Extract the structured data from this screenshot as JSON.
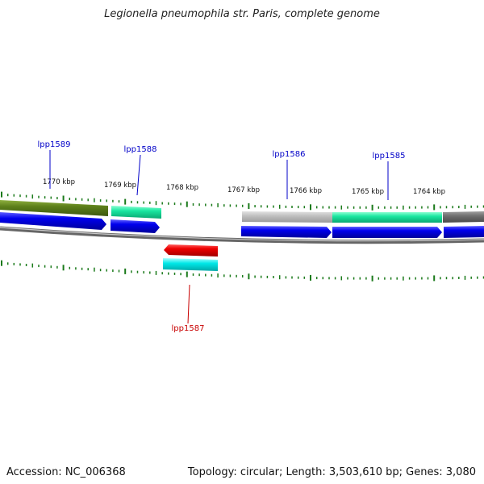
{
  "title": "Legionella pneumophila str. Paris, complete genome",
  "footer": {
    "accession": "Accession: NC_006368",
    "summary": "Topology: circular; Length: 3,503,610 bp; Genes: 3,080"
  },
  "scale_labels": [
    "1770 kbp",
    "1769 kbp",
    "1768 kbp",
    "1767 kbp",
    "1766 kbp",
    "1765 kbp",
    "1764 kbp"
  ],
  "genes": [
    {
      "name": "lpp1589",
      "strand": "plus",
      "color": "#0000c8"
    },
    {
      "name": "lpp1588",
      "strand": "plus",
      "color": "#0000c8"
    },
    {
      "name": "lpp1587",
      "strand": "minus",
      "color": "#c80000"
    },
    {
      "name": "lpp1586",
      "strand": "plus",
      "color": "#0000c8"
    },
    {
      "name": "lpp1585",
      "strand": "plus",
      "color": "#0000c8"
    }
  ],
  "colors": {
    "forward_cds": "#0000ee",
    "reverse_cds": "#ee0000",
    "backbone": "#808080",
    "tick": "#1a7a1a",
    "feature_olive": "#5c7f1a",
    "feature_teal": "#1ae6a0",
    "feature_cyan": "#00e8e8",
    "feature_lightgray": "#c0c0c0",
    "feature_darkgray": "#707070"
  }
}
